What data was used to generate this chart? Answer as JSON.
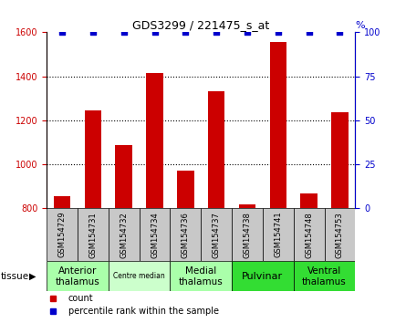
{
  "title": "GDS3299 / 221475_s_at",
  "samples": [
    "GSM154729",
    "GSM154731",
    "GSM154732",
    "GSM154734",
    "GSM154736",
    "GSM154737",
    "GSM154738",
    "GSM154741",
    "GSM154748",
    "GSM154753"
  ],
  "counts": [
    855,
    1243,
    1087,
    1415,
    970,
    1330,
    818,
    1558,
    868,
    1235
  ],
  "percentiles": [
    100,
    100,
    100,
    100,
    100,
    100,
    100,
    100,
    100,
    100
  ],
  "ylim_left": [
    800,
    1600
  ],
  "ylim_right": [
    0,
    100
  ],
  "yticks_left": [
    800,
    1000,
    1200,
    1400,
    1600
  ],
  "yticks_right": [
    0,
    25,
    50,
    75,
    100
  ],
  "bar_color": "#cc0000",
  "dot_color": "#0000cc",
  "bar_width": 0.55,
  "tissue_groups": [
    {
      "label": "Anterior\nthalamus",
      "start": 0,
      "end": 1,
      "color": "#aaffaa",
      "fontsize": 7.5
    },
    {
      "label": "Centre median",
      "start": 2,
      "end": 3,
      "color": "#ccffcc",
      "fontsize": 5.5
    },
    {
      "label": "Medial\nthalamus",
      "start": 4,
      "end": 5,
      "color": "#aaffaa",
      "fontsize": 7.5
    },
    {
      "label": "Pulvinar",
      "start": 6,
      "end": 7,
      "color": "#33dd33",
      "fontsize": 8
    },
    {
      "label": "Ventral\nthalamus",
      "start": 8,
      "end": 9,
      "color": "#33dd33",
      "fontsize": 7.5
    }
  ],
  "sample_bg_color": "#c8c8c8",
  "legend_count_color": "#cc0000",
  "legend_pct_color": "#0000cc",
  "grid_color": "#000000",
  "left_tick_color": "#cc0000",
  "right_tick_color": "#0000cc",
  "sample_label_fontsize": 6.0,
  "title_fontsize": 9
}
